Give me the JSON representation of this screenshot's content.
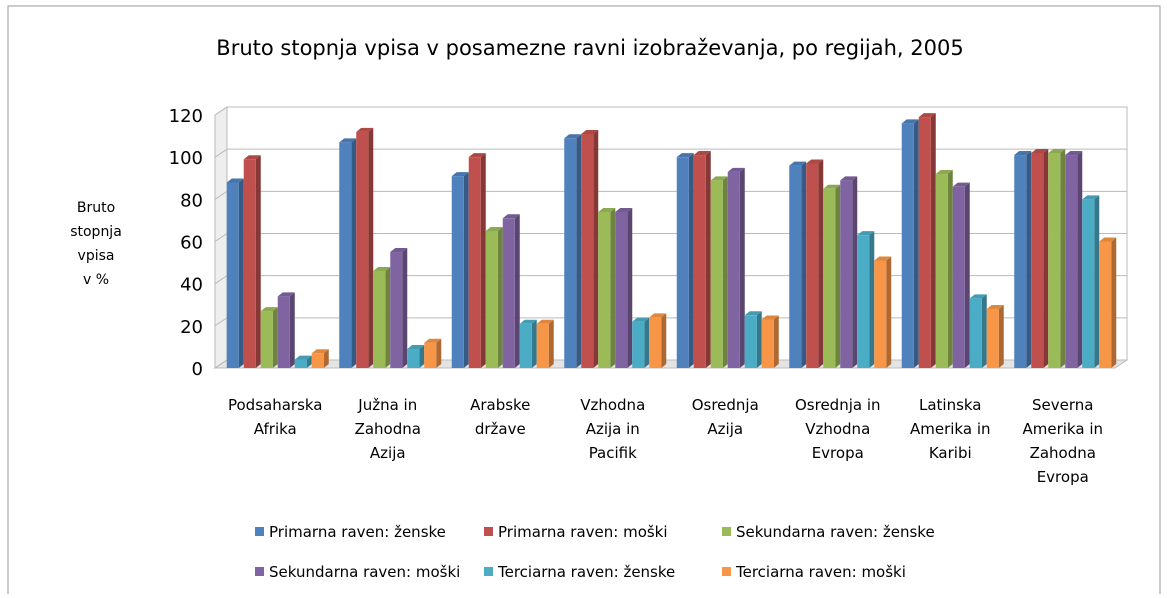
{
  "chart_data": {
    "type": "bar",
    "title": "Bruto stopnja vpisa v posamezne ravni izobraževanja, po regijah, 2005",
    "y_label": "Bruto\nstopnja\nvpisa\nv %",
    "categories": [
      "Podsaharska\nAfrika",
      "Južna in\nZahodna\nAzija",
      "Arabske\ndržave",
      "Vzhodna\nAzija in\nPacifik",
      "Osrednja\nAzija",
      "Osrednja in\nVzhodna\nEvropa",
      "Latinska\nAmerika in\nKaribi",
      "Severna\nAmerika in\nZahodna\nEvropa"
    ],
    "series": [
      {
        "name": "Primarna raven: ženske",
        "color": "#4f81bd",
        "values": [
          88,
          107,
          91,
          109,
          100,
          96,
          116,
          101
        ]
      },
      {
        "name": "Primarna raven: moški",
        "color": "#c0504d",
        "values": [
          99,
          112,
          100,
          111,
          101,
          97,
          119,
          102
        ]
      },
      {
        "name": "Sekundarna raven: ženske",
        "color": "#9bbb59",
        "values": [
          27,
          46,
          65,
          74,
          89,
          85,
          92,
          102
        ]
      },
      {
        "name": "Sekundarna raven: moški",
        "color": "#8064a2",
        "values": [
          34,
          55,
          71,
          74,
          93,
          89,
          86,
          101
        ]
      },
      {
        "name": "Terciarna raven: ženske",
        "color": "#4bacc6",
        "values": [
          4,
          9,
          21,
          22,
          25,
          63,
          33,
          80
        ]
      },
      {
        "name": "Terciarna raven: moški",
        "color": "#f79646",
        "values": [
          7,
          12,
          21,
          24,
          23,
          51,
          28,
          60
        ]
      }
    ],
    "ylim": [
      0,
      120
    ],
    "yticks": [
      0,
      20,
      40,
      60,
      80,
      100,
      120
    ],
    "grid": true
  }
}
